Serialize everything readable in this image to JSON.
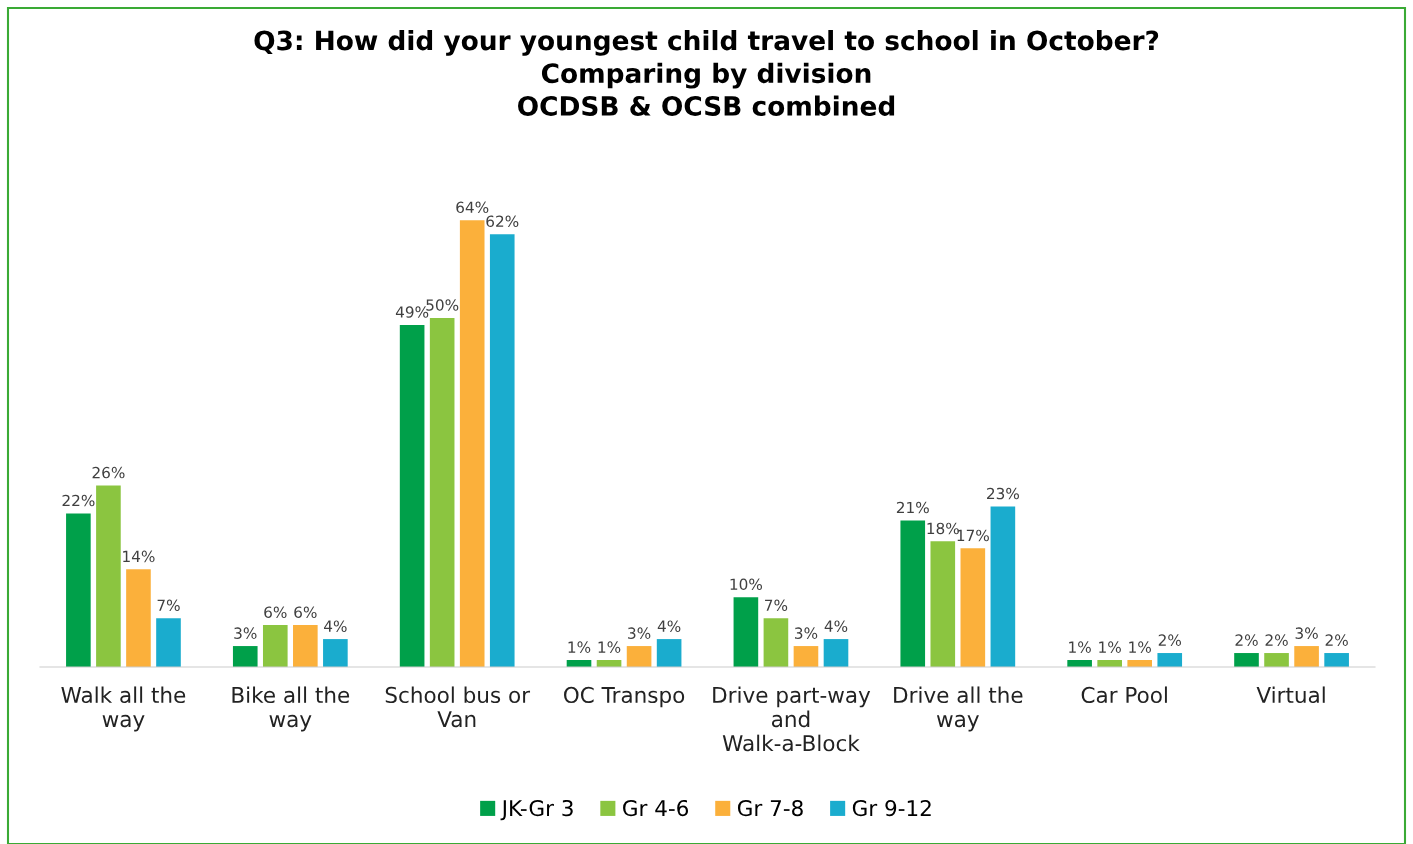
{
  "chart_data": {
    "type": "bar",
    "title": "Q3: How did your youngest child travel to school in October?\nComparing by division\nOCDSB & OCSB combined",
    "categories": [
      "Walk all the way",
      "Bike all the way",
      "School bus or Van",
      "OC Transpo",
      "Drive part-way and Walk-a-Block",
      "Drive all the way",
      "Car Pool",
      "Virtual"
    ],
    "series": [
      {
        "name": "JK-Gr 3",
        "color": "#00a04a",
        "values": [
          22,
          3,
          49,
          1,
          10,
          21,
          1,
          2
        ],
        "value_labels": [
          "22%",
          "3%",
          "49%",
          "1%",
          "10%",
          "21%",
          "1%",
          "2%"
        ]
      },
      {
        "name": "Gr 4-6",
        "color": "#8bc540",
        "values": [
          26,
          6,
          50,
          1,
          7,
          18,
          1,
          2
        ],
        "value_labels": [
          "26%",
          "6%",
          "50%",
          "1%",
          "7%",
          "18%",
          "1%",
          "2%"
        ]
      },
      {
        "name": "Gr 7-8",
        "color": "#fbb03b",
        "values": [
          14,
          6,
          64,
          3,
          3,
          17,
          1,
          3
        ],
        "value_labels": [
          "14%",
          "6%",
          "64%",
          "3%",
          "3%",
          "17%",
          "1%",
          "3%"
        ]
      },
      {
        "name": "Gr 9-12",
        "color": "#1aacce",
        "values": [
          7,
          4,
          62,
          4,
          4,
          23,
          2,
          2
        ],
        "value_labels": [
          "7%",
          "4%",
          "62%",
          "4%",
          "4%",
          "23%",
          "2%",
          "2%"
        ]
      }
    ],
    "legend": "bottom",
    "grid": false
  }
}
